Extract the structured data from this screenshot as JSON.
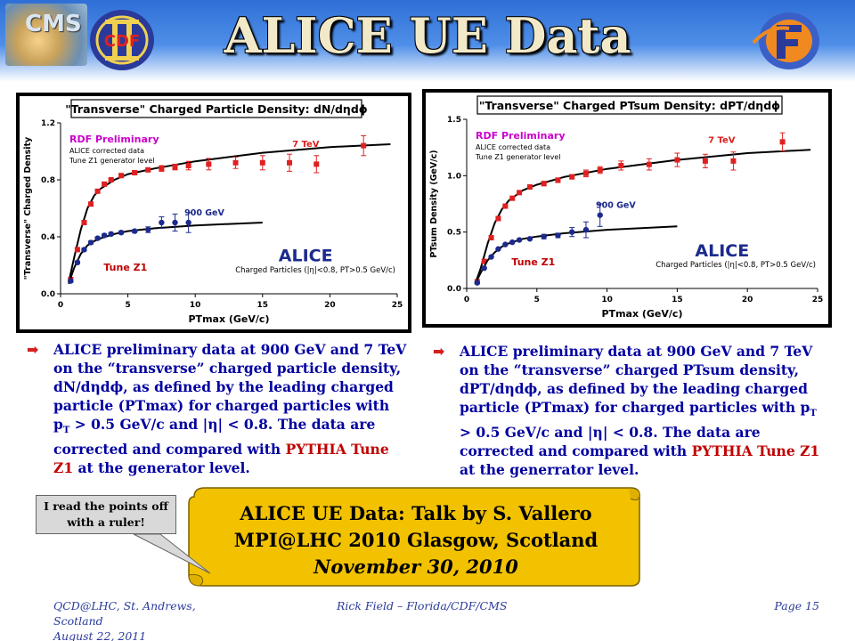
{
  "header": {
    "title": "ALICE UE Data",
    "logo_cms_text": "CMS",
    "logo_cdf_text": "CDF"
  },
  "colors": {
    "header_blue": "#2f6fd6",
    "title_fill": "#f2e9c9",
    "data_7tev": "#e02020",
    "data_900gev": "#1c2a8c",
    "text_red": "#c00000",
    "scroll_gold": "#f2c200",
    "footer_blue": "#2a3a9a"
  },
  "chart_data": [
    {
      "type": "scatter",
      "title": "\"Transverse\" Charged Particle Density: dN/dηdϕ",
      "xlabel": "PTmax (GeV/c)",
      "ylabel": "\"Transverse\" Charged Density",
      "xlim": [
        0,
        25
      ],
      "ylim": [
        0.0,
        1.2
      ],
      "xticks": [
        "0",
        "5",
        "10",
        "15",
        "20",
        "25"
      ],
      "yticks": [
        "0.0",
        "0.4",
        "0.8",
        "1.2"
      ],
      "annotations": {
        "prelim": "RDF Preliminary",
        "note1": "ALICE corrected data",
        "note2": "Tune Z1 generator level",
        "tune": "Tune Z1",
        "experiment": "ALICE",
        "cuts": "Charged Particles (|η|<0.8, PT>0.5 GeV/c)"
      },
      "series": [
        {
          "name": "7 TeV",
          "color": "#e02020",
          "marker": "square",
          "points": [
            [
              0.75,
              0.1,
              0.01
            ],
            [
              1.25,
              0.31,
              0.01
            ],
            [
              1.75,
              0.5,
              0.01
            ],
            [
              2.25,
              0.63,
              0.01
            ],
            [
              2.75,
              0.72,
              0.01
            ],
            [
              3.25,
              0.77,
              0.01
            ],
            [
              3.75,
              0.8,
              0.01
            ],
            [
              4.5,
              0.83,
              0.01
            ],
            [
              5.5,
              0.85,
              0.01
            ],
            [
              6.5,
              0.87,
              0.01
            ],
            [
              7.5,
              0.88,
              0.02
            ],
            [
              8.5,
              0.89,
              0.02
            ],
            [
              9.5,
              0.9,
              0.03
            ],
            [
              11.0,
              0.91,
              0.04
            ],
            [
              13.0,
              0.92,
              0.04
            ],
            [
              15.0,
              0.92,
              0.05
            ],
            [
              17.0,
              0.92,
              0.06
            ],
            [
              19.0,
              0.91,
              0.06
            ],
            [
              22.5,
              1.04,
              0.07
            ]
          ],
          "tune_curve": [
            [
              0.6,
              0.08
            ],
            [
              1.0,
              0.25
            ],
            [
              1.5,
              0.45
            ],
            [
              2.0,
              0.6
            ],
            [
              2.5,
              0.69
            ],
            [
              3.0,
              0.74
            ],
            [
              4.0,
              0.8
            ],
            [
              5.0,
              0.84
            ],
            [
              7.0,
              0.88
            ],
            [
              10.0,
              0.93
            ],
            [
              15.0,
              0.99
            ],
            [
              20.0,
              1.03
            ],
            [
              24.5,
              1.05
            ]
          ]
        },
        {
          "name": "900 GeV",
          "color": "#1c2a8c",
          "marker": "circle",
          "points": [
            [
              0.75,
              0.09,
              0.01
            ],
            [
              1.25,
              0.22,
              0.01
            ],
            [
              1.75,
              0.31,
              0.01
            ],
            [
              2.25,
              0.36,
              0.01
            ],
            [
              2.75,
              0.39,
              0.01
            ],
            [
              3.25,
              0.41,
              0.01
            ],
            [
              3.75,
              0.42,
              0.01
            ],
            [
              4.5,
              0.43,
              0.01
            ],
            [
              5.5,
              0.44,
              0.01
            ],
            [
              6.5,
              0.45,
              0.02
            ],
            [
              7.5,
              0.5,
              0.04
            ],
            [
              8.5,
              0.5,
              0.06
            ],
            [
              9.5,
              0.5,
              0.07
            ]
          ],
          "tune_curve": [
            [
              0.6,
              0.07
            ],
            [
              1.0,
              0.18
            ],
            [
              1.5,
              0.28
            ],
            [
              2.0,
              0.34
            ],
            [
              2.5,
              0.37
            ],
            [
              3.0,
              0.39
            ],
            [
              4.0,
              0.42
            ],
            [
              5.0,
              0.44
            ],
            [
              7.0,
              0.46
            ],
            [
              10.0,
              0.48
            ],
            [
              15.0,
              0.5
            ]
          ]
        }
      ]
    },
    {
      "type": "scatter",
      "title": "\"Transverse\" Charged PTsum Density: dPT/dηdϕ",
      "xlabel": "PTmax (GeV/c)",
      "ylabel": "PTsum Density (GeV/c)",
      "xlim": [
        0,
        25
      ],
      "ylim": [
        0.0,
        1.5
      ],
      "xticks": [
        "0",
        "5",
        "10",
        "15",
        "20",
        "25"
      ],
      "yticks": [
        "0.0",
        "0.5",
        "1.0",
        "1.5"
      ],
      "annotations": {
        "prelim": "RDF Preliminary",
        "note1": "ALICE corrected data",
        "note2": "Tune Z1 generator level",
        "tune": "Tune Z1",
        "experiment": "ALICE",
        "cuts": "Charged Particles (|η|<0.8, PT>0.5 GeV/c)"
      },
      "series": [
        {
          "name": "7 TeV",
          "color": "#e02020",
          "marker": "square",
          "points": [
            [
              0.75,
              0.06,
              0.01
            ],
            [
              1.25,
              0.24,
              0.01
            ],
            [
              1.75,
              0.45,
              0.01
            ],
            [
              2.25,
              0.62,
              0.01
            ],
            [
              2.75,
              0.73,
              0.01
            ],
            [
              3.25,
              0.8,
              0.01
            ],
            [
              3.75,
              0.85,
              0.01
            ],
            [
              4.5,
              0.9,
              0.01
            ],
            [
              5.5,
              0.93,
              0.02
            ],
            [
              6.5,
              0.96,
              0.02
            ],
            [
              7.5,
              0.99,
              0.02
            ],
            [
              8.5,
              1.02,
              0.03
            ],
            [
              9.5,
              1.05,
              0.03
            ],
            [
              11.0,
              1.09,
              0.04
            ],
            [
              13.0,
              1.1,
              0.05
            ],
            [
              15.0,
              1.14,
              0.06
            ],
            [
              17.0,
              1.13,
              0.06
            ],
            [
              19.0,
              1.13,
              0.08
            ],
            [
              22.5,
              1.3,
              0.08
            ]
          ],
          "tune_curve": [
            [
              0.6,
              0.04
            ],
            [
              1.0,
              0.18
            ],
            [
              1.5,
              0.4
            ],
            [
              2.0,
              0.58
            ],
            [
              2.5,
              0.7
            ],
            [
              3.0,
              0.78
            ],
            [
              4.0,
              0.87
            ],
            [
              5.0,
              0.92
            ],
            [
              7.0,
              0.99
            ],
            [
              10.0,
              1.06
            ],
            [
              15.0,
              1.14
            ],
            [
              20.0,
              1.2
            ],
            [
              24.5,
              1.23
            ]
          ]
        },
        {
          "name": "900 GeV",
          "color": "#1c2a8c",
          "marker": "circle",
          "points": [
            [
              0.75,
              0.05,
              0.01
            ],
            [
              1.25,
              0.18,
              0.01
            ],
            [
              1.75,
              0.28,
              0.01
            ],
            [
              2.25,
              0.35,
              0.01
            ],
            [
              2.75,
              0.39,
              0.01
            ],
            [
              3.25,
              0.41,
              0.01
            ],
            [
              3.75,
              0.43,
              0.01
            ],
            [
              4.5,
              0.44,
              0.01
            ],
            [
              5.5,
              0.46,
              0.02
            ],
            [
              6.5,
              0.47,
              0.02
            ],
            [
              7.5,
              0.5,
              0.04
            ],
            [
              8.5,
              0.52,
              0.07
            ],
            [
              9.5,
              0.65,
              0.1
            ]
          ],
          "tune_curve": [
            [
              0.6,
              0.04
            ],
            [
              1.0,
              0.14
            ],
            [
              1.5,
              0.25
            ],
            [
              2.0,
              0.32
            ],
            [
              2.5,
              0.37
            ],
            [
              3.0,
              0.4
            ],
            [
              4.0,
              0.44
            ],
            [
              5.0,
              0.46
            ],
            [
              7.0,
              0.49
            ],
            [
              10.0,
              0.52
            ],
            [
              15.0,
              0.55
            ]
          ]
        }
      ]
    }
  ],
  "bullets": {
    "left": {
      "p1": "ALICE preliminary data at  900 GeV and 7 TeV on the “transverse” charged particle density, dN/dηdϕ, as defined by the leading charged particle (PTmax) for charged particles with p",
      "sub": "T",
      "p2": " > 0.5 GeV/c  and |η| < 0.8. The data are corrected  and compared with ",
      "hl": "PYTHIA Tune Z1",
      "p3": " at the generator level."
    },
    "right": {
      "p1": "ALICE preliminary data at  900 GeV and 7 TeV on the “transverse” charged PTsum density, dPT/dηdϕ, as defined by the leading charged particle (PTmax) for charged particles with p",
      "sub": "T",
      "p2": " > 0.5 GeV/c  and |η| < 0.8. The data are corrected  and compared with ",
      "hl": "PYTHIA Tune Z1",
      "p3": " at the generrator level."
    }
  },
  "scroll": {
    "line1": "ALICE UE Data: Talk by S. Vallero",
    "line2": "MPI@LHC 2010 Glasgow, Scotland",
    "line3": "November 30, 2010"
  },
  "callout": {
    "text": "I read the points off with a ruler!"
  },
  "footer": {
    "left_line1": "QCD@LHC, St. Andrews, Scotland",
    "left_line2": "August 22, 2011",
    "center": "Rick Field – Florida/CDF/CMS",
    "right": "Page 15"
  }
}
